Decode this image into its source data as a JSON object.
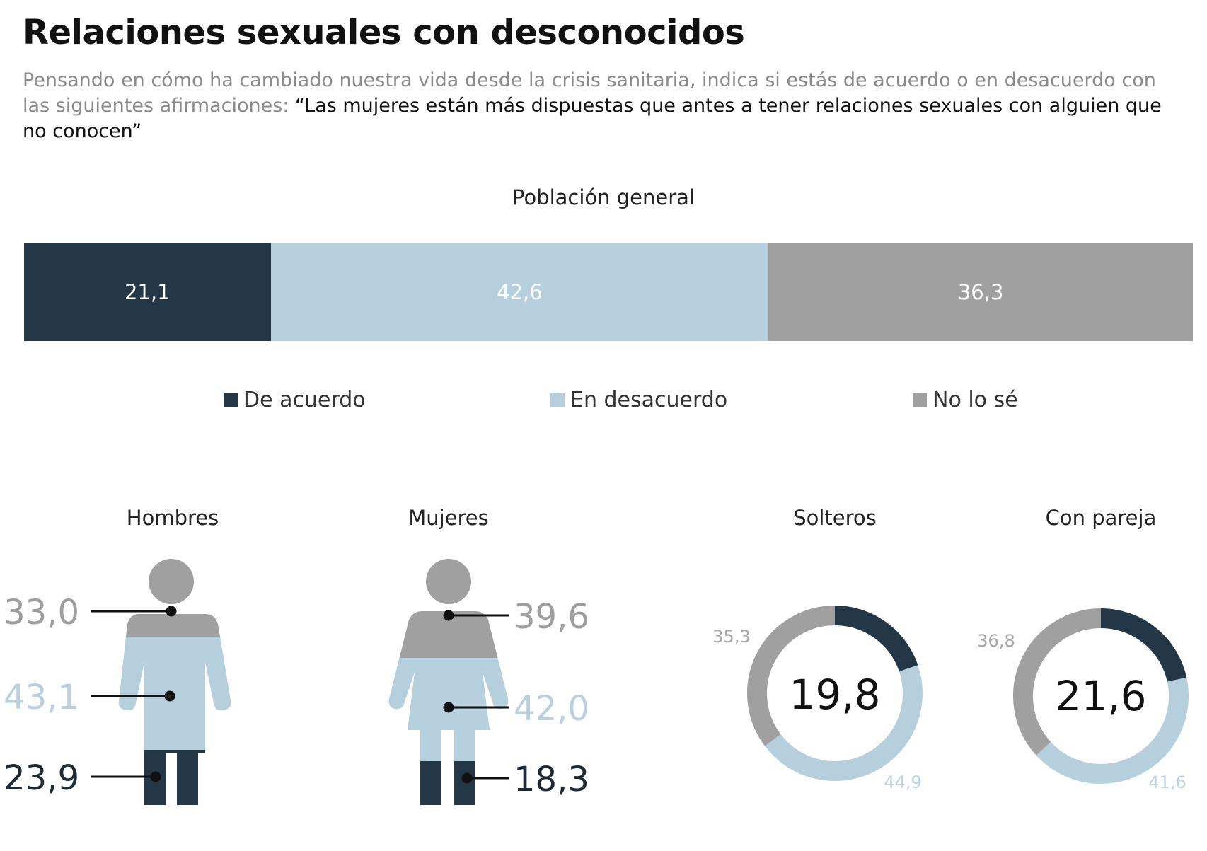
{
  "title": "Relaciones sexuales con desconocidos",
  "subtitle_intro": "Pensando en cómo ha cambiado nuestra vida desde la crisis sanitaria, indica si estás de acuerdo o en desacuerdo con las siguientes afirmaciones: ",
  "subtitle_quote": "“Las mujeres están más dispuestas que antes a tener relaciones sexuales con alguien que no conocen”",
  "colors": {
    "de_acuerdo": "#233746",
    "en_desacuerdo": "#b6cfdd",
    "no_lo_se": "#a0a0a0"
  },
  "chart_data": [
    {
      "type": "bar",
      "title": "Población general",
      "categories": [
        "De acuerdo",
        "En desacuerdo",
        "No lo sé"
      ],
      "values": [
        21.1,
        42.6,
        36.3
      ],
      "labels": [
        "21,1",
        "42,6",
        "36,3"
      ],
      "legend_position": "bottom"
    },
    {
      "type": "bar",
      "title": "Hombres",
      "categories": [
        "No lo sé",
        "En desacuerdo",
        "De acuerdo"
      ],
      "values": [
        33.0,
        43.1,
        23.9
      ],
      "labels": [
        "33,0",
        "43,1",
        "23,9"
      ]
    },
    {
      "type": "bar",
      "title": "Mujeres",
      "categories": [
        "No lo sé",
        "En desacuerdo",
        "De acuerdo"
      ],
      "values": [
        39.6,
        42.0,
        18.3
      ],
      "labels": [
        "39,6",
        "42,0",
        "18,3"
      ]
    },
    {
      "type": "pie",
      "title": "Solteros",
      "categories": [
        "De acuerdo",
        "En desacuerdo",
        "No lo sé"
      ],
      "values": [
        19.8,
        44.9,
        35.3
      ],
      "labels": [
        "19,8",
        "44,9",
        "35,3"
      ]
    },
    {
      "type": "pie",
      "title": "Con pareja",
      "categories": [
        "De acuerdo",
        "En desacuerdo",
        "No lo sé"
      ],
      "values": [
        21.6,
        41.6,
        36.8
      ],
      "labels": [
        "21,6",
        "41,6",
        "36,8"
      ]
    }
  ]
}
